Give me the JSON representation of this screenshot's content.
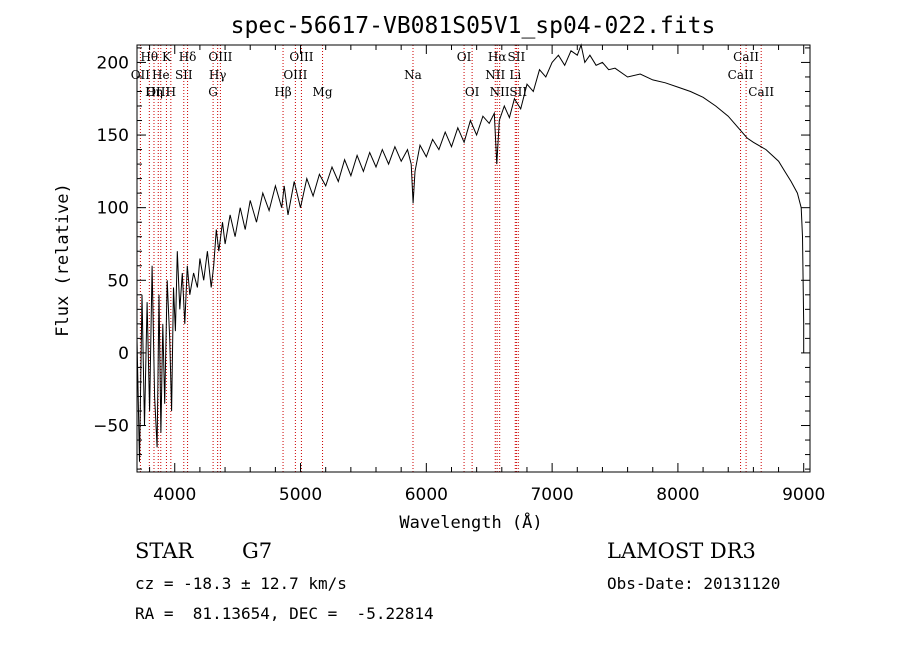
{
  "chart_data": {
    "type": "line",
    "title": "spec-56617-VB081S05V1_sp04-022.fits",
    "xlabel": "Wavelength (Å)",
    "ylabel": "Flux (relative)",
    "xlim": [
      3700,
      9050
    ],
    "ylim": [
      -82,
      212
    ],
    "xticks": [
      4000,
      5000,
      6000,
      7000,
      8000,
      9000
    ],
    "yticks": [
      -50,
      0,
      50,
      100,
      150,
      200
    ],
    "grid": false,
    "legend": "none",
    "series": [
      {
        "name": "flux",
        "points": [
          [
            3700,
            10
          ],
          [
            3720,
            -75
          ],
          [
            3740,
            40
          ],
          [
            3760,
            -50
          ],
          [
            3780,
            35
          ],
          [
            3800,
            -40
          ],
          [
            3820,
            60
          ],
          [
            3840,
            -30
          ],
          [
            3860,
            -65
          ],
          [
            3875,
            40
          ],
          [
            3890,
            -55
          ],
          [
            3905,
            20
          ],
          [
            3920,
            -35
          ],
          [
            3940,
            50
          ],
          [
            3960,
            10
          ],
          [
            3975,
            -40
          ],
          [
            3990,
            45
          ],
          [
            4005,
            15
          ],
          [
            4020,
            70
          ],
          [
            4040,
            30
          ],
          [
            4060,
            55
          ],
          [
            4080,
            20
          ],
          [
            4100,
            60
          ],
          [
            4120,
            40
          ],
          [
            4150,
            55
          ],
          [
            4180,
            45
          ],
          [
            4200,
            65
          ],
          [
            4230,
            50
          ],
          [
            4260,
            70
          ],
          [
            4290,
            45
          ],
          [
            4310,
            60
          ],
          [
            4330,
            85
          ],
          [
            4350,
            70
          ],
          [
            4380,
            90
          ],
          [
            4400,
            75
          ],
          [
            4440,
            95
          ],
          [
            4480,
            80
          ],
          [
            4520,
            100
          ],
          [
            4560,
            85
          ],
          [
            4600,
            105
          ],
          [
            4650,
            90
          ],
          [
            4700,
            110
          ],
          [
            4750,
            98
          ],
          [
            4800,
            115
          ],
          [
            4850,
            100
          ],
          [
            4870,
            115
          ],
          [
            4900,
            95
          ],
          [
            4950,
            118
          ],
          [
            5000,
            100
          ],
          [
            5050,
            120
          ],
          [
            5100,
            108
          ],
          [
            5150,
            123
          ],
          [
            5200,
            115
          ],
          [
            5250,
            128
          ],
          [
            5300,
            118
          ],
          [
            5350,
            133
          ],
          [
            5400,
            122
          ],
          [
            5450,
            136
          ],
          [
            5500,
            125
          ],
          [
            5550,
            138
          ],
          [
            5600,
            128
          ],
          [
            5650,
            140
          ],
          [
            5700,
            130
          ],
          [
            5750,
            142
          ],
          [
            5800,
            132
          ],
          [
            5850,
            140
          ],
          [
            5880,
            130
          ],
          [
            5895,
            103
          ],
          [
            5910,
            125
          ],
          [
            5950,
            143
          ],
          [
            6000,
            135
          ],
          [
            6050,
            147
          ],
          [
            6100,
            140
          ],
          [
            6150,
            152
          ],
          [
            6200,
            142
          ],
          [
            6250,
            155
          ],
          [
            6300,
            145
          ],
          [
            6350,
            160
          ],
          [
            6400,
            150
          ],
          [
            6450,
            163
          ],
          [
            6500,
            158
          ],
          [
            6540,
            165
          ],
          [
            6560,
            130
          ],
          [
            6580,
            160
          ],
          [
            6620,
            170
          ],
          [
            6660,
            162
          ],
          [
            6700,
            175
          ],
          [
            6750,
            168
          ],
          [
            6800,
            185
          ],
          [
            6850,
            180
          ],
          [
            6900,
            195
          ],
          [
            6950,
            190
          ],
          [
            7000,
            200
          ],
          [
            7050,
            205
          ],
          [
            7100,
            198
          ],
          [
            7150,
            208
          ],
          [
            7200,
            205
          ],
          [
            7230,
            212
          ],
          [
            7260,
            200
          ],
          [
            7300,
            205
          ],
          [
            7350,
            198
          ],
          [
            7400,
            200
          ],
          [
            7450,
            195
          ],
          [
            7500,
            196
          ],
          [
            7600,
            190
          ],
          [
            7700,
            192
          ],
          [
            7800,
            188
          ],
          [
            7900,
            186
          ],
          [
            8000,
            183
          ],
          [
            8100,
            180
          ],
          [
            8200,
            176
          ],
          [
            8300,
            170
          ],
          [
            8400,
            163
          ],
          [
            8500,
            153
          ],
          [
            8550,
            148
          ],
          [
            8600,
            145
          ],
          [
            8700,
            140
          ],
          [
            8800,
            132
          ],
          [
            8850,
            125
          ],
          [
            8900,
            118
          ],
          [
            8950,
            110
          ],
          [
            8980,
            100
          ],
          [
            8990,
            80
          ],
          [
            9000,
            20
          ],
          [
            9000,
            0
          ]
        ]
      }
    ],
    "lines": [
      {
        "label": "Hθ",
        "x": 3798,
        "row": 0
      },
      {
        "label": "OII",
        "x": 3727,
        "row": 1
      },
      {
        "label": "OIII",
        "x": 3869,
        "row": 2
      },
      {
        "label": "K",
        "x": 3934,
        "row": 0
      },
      {
        "label": "Hδ",
        "x": 4102,
        "row": 0
      },
      {
        "label": "He",
        "x": 3889,
        "row": 1
      },
      {
        "label": "SII",
        "x": 4072,
        "row": 1
      },
      {
        "label": "Hη",
        "x": 3835,
        "row": 2
      },
      {
        "label": "H",
        "x": 3969,
        "row": 2
      },
      {
        "label": "OIII",
        "x": 4363,
        "row": 0
      },
      {
        "label": "Hγ",
        "x": 4341,
        "row": 1
      },
      {
        "label": "G",
        "x": 4305,
        "row": 2
      },
      {
        "label": "OIII",
        "x": 5007,
        "row": 0
      },
      {
        "label": "OIII",
        "x": 4959,
        "row": 1
      },
      {
        "label": "Hβ",
        "x": 4861,
        "row": 2
      },
      {
        "label": "Mg",
        "x": 5175,
        "row": 2
      },
      {
        "label": "Na",
        "x": 5894,
        "row": 1
      },
      {
        "label": "OI",
        "x": 6300,
        "row": 0
      },
      {
        "label": "OI",
        "x": 6364,
        "row": 2
      },
      {
        "label": "Hα",
        "x": 6563,
        "row": 0
      },
      {
        "label": "SII",
        "x": 6716,
        "row": 0
      },
      {
        "label": "NII",
        "x": 6548,
        "row": 1
      },
      {
        "label": "Li",
        "x": 6707,
        "row": 1
      },
      {
        "label": "NII",
        "x": 6583,
        "row": 2
      },
      {
        "label": "SII",
        "x": 6731,
        "row": 2
      },
      {
        "label": "CaII",
        "x": 8542,
        "row": 0
      },
      {
        "label": "CaII",
        "x": 8498,
        "row": 1
      },
      {
        "label": "CaII",
        "x": 8662,
        "row": 2
      }
    ],
    "line_color": "#cc0000"
  },
  "info": {
    "class": "STAR",
    "subclass": "G7",
    "survey": "LAMOST DR3",
    "redshift": "cz = -18.3 ± 12.7 km/s",
    "obs_date": "Obs-Date: 20131120",
    "coords": "RA =  81.13654, DEC =  -5.22814"
  }
}
